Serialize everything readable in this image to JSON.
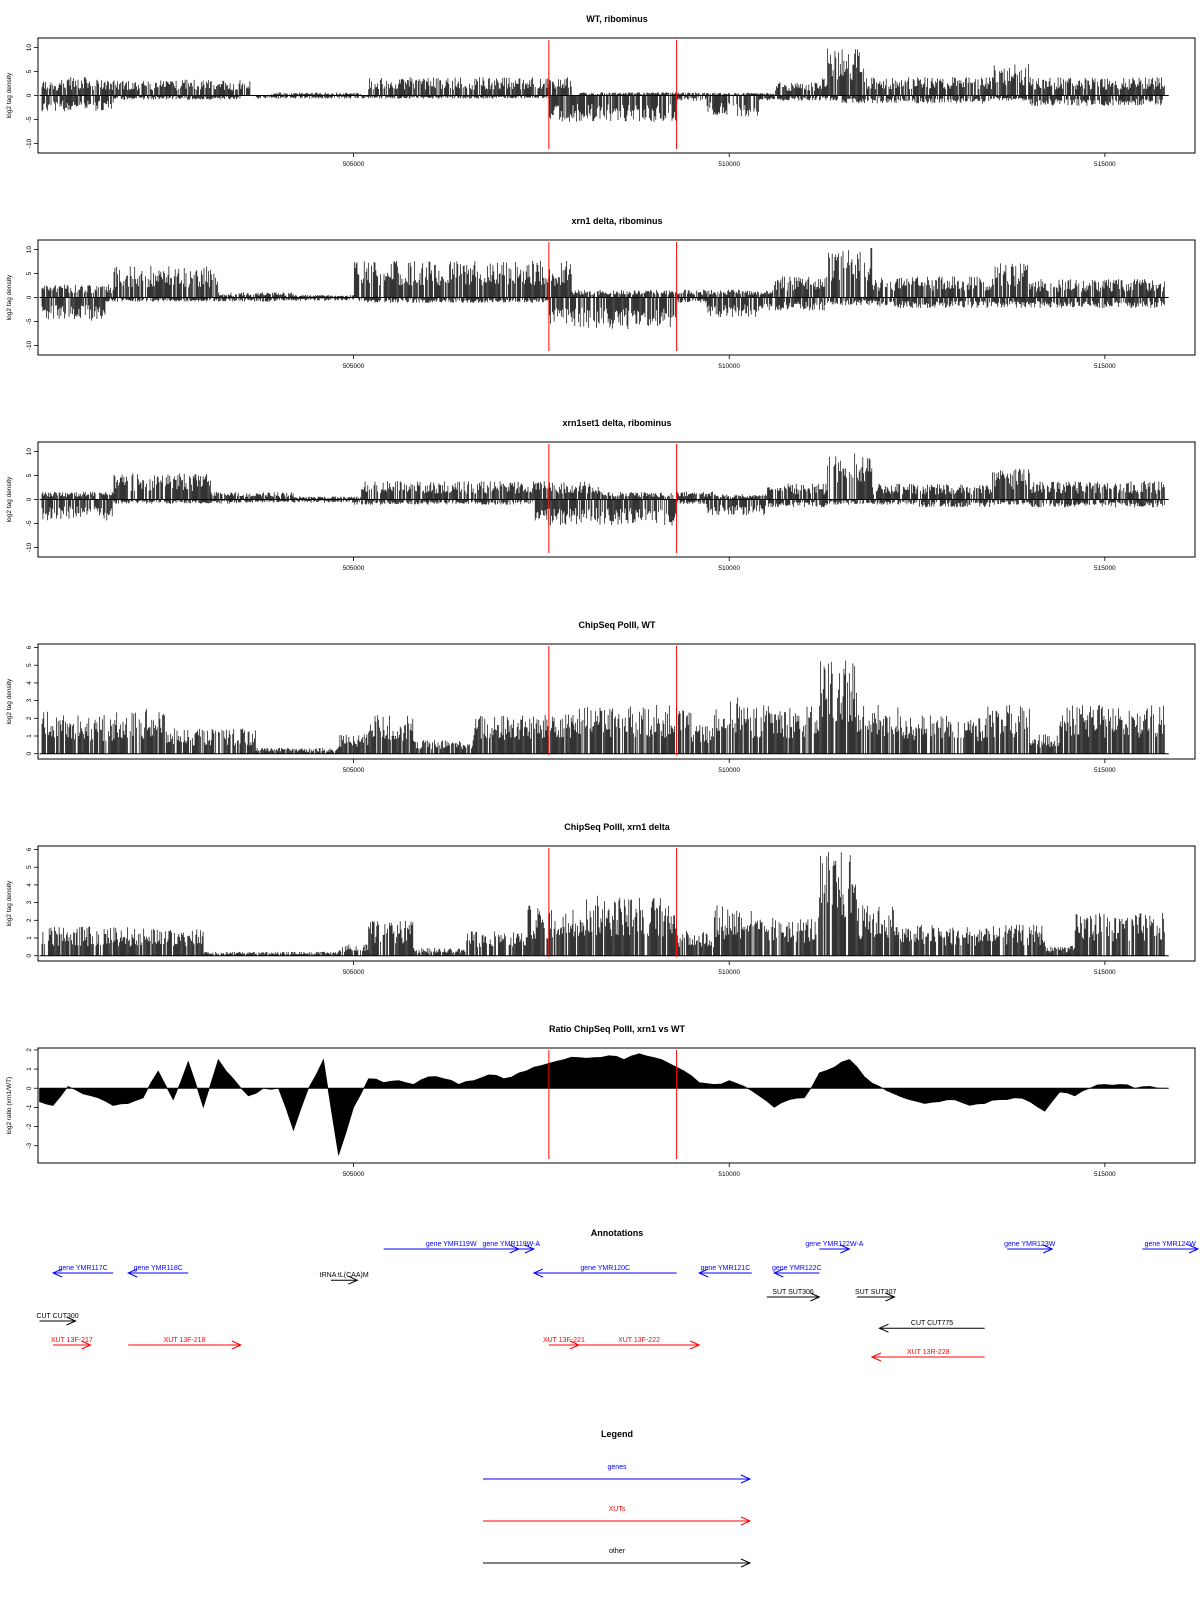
{
  "chart_data": [
    {
      "id": "wt-ribominus",
      "type": "bar",
      "title": "WT, ribominus",
      "ylabel": "log2 tag density",
      "xlim": [
        500800,
        516200
      ],
      "ylim": [
        -12,
        12
      ],
      "yticks": [
        -10,
        -5,
        0,
        5,
        10
      ],
      "xticks": [
        505000,
        510000,
        515000
      ],
      "bidirectional": true,
      "markers": [
        507600,
        509300
      ],
      "plus": [
        [
          500820,
          503630,
          3.0
        ],
        [
          501200,
          501500,
          3.5
        ],
        [
          502100,
          503600,
          3.0
        ],
        [
          503900,
          505100,
          0.6
        ],
        [
          505200,
          507900,
          3.5
        ],
        [
          508000,
          509800,
          0.6
        ],
        [
          509800,
          510600,
          0.5
        ],
        [
          510600,
          511200,
          2.5
        ],
        [
          511200,
          511800,
          3.5
        ],
        [
          511300,
          511800,
          9.0
        ],
        [
          511800,
          513500,
          3.5
        ],
        [
          513500,
          514000,
          6.0
        ],
        [
          514000,
          515800,
          3.5
        ]
      ],
      "minus": [
        [
          500820,
          501800,
          3.0
        ],
        [
          501800,
          503500,
          0.8
        ],
        [
          503700,
          507600,
          0.6
        ],
        [
          507600,
          509300,
          5.0
        ],
        [
          509300,
          509700,
          1.0
        ],
        [
          509700,
          510400,
          4.0
        ],
        [
          510400,
          511500,
          1.0
        ],
        [
          511500,
          512500,
          1.5
        ],
        [
          512500,
          513500,
          1.5
        ],
        [
          513500,
          514000,
          1.0
        ],
        [
          514000,
          515800,
          2.0
        ]
      ]
    },
    {
      "id": "xrn1-ribominus",
      "type": "bar",
      "title": "xrn1 delta, ribominus",
      "ylabel": "log2 tag density",
      "xlim": [
        500800,
        516200
      ],
      "ylim": [
        -12,
        12
      ],
      "yticks": [
        -10,
        -5,
        0,
        5,
        10
      ],
      "xticks": [
        505000,
        510000,
        515000
      ],
      "bidirectional": true,
      "markers": [
        507600,
        509300
      ],
      "plus": [
        [
          500820,
          501800,
          2.5
        ],
        [
          501800,
          503200,
          6.0
        ],
        [
          503200,
          504200,
          1.0
        ],
        [
          504200,
          505000,
          0.5
        ],
        [
          505000,
          507900,
          7.0
        ],
        [
          507900,
          509800,
          1.5
        ],
        [
          509800,
          510600,
          1.5
        ],
        [
          510600,
          511300,
          4.0
        ],
        [
          511300,
          511900,
          9.5
        ],
        [
          511900,
          513500,
          4.0
        ],
        [
          513500,
          514000,
          6.5
        ],
        [
          514000,
          515800,
          3.5
        ]
      ],
      "minus": [
        [
          500820,
          501700,
          4.5
        ],
        [
          501700,
          504000,
          0.8
        ],
        [
          504000,
          505000,
          0.6
        ],
        [
          505000,
          507600,
          1.0
        ],
        [
          507600,
          509300,
          6.0
        ],
        [
          509300,
          509700,
          1.0
        ],
        [
          509700,
          510400,
          4.0
        ],
        [
          510400,
          511300,
          2.5
        ],
        [
          511300,
          512000,
          1.5
        ],
        [
          512000,
          513500,
          2.0
        ],
        [
          513500,
          514200,
          2.0
        ],
        [
          514200,
          515800,
          2.0
        ]
      ]
    },
    {
      "id": "xrn1set1-ribominus",
      "type": "bar",
      "title": "xrn1set1 delta, ribominus",
      "ylabel": "log2 tag density",
      "xlim": [
        500800,
        516200
      ],
      "ylim": [
        -12,
        12
      ],
      "yticks": [
        -10,
        -5,
        0,
        5,
        10
      ],
      "xticks": [
        505000,
        510000,
        515000
      ],
      "bidirectional": true,
      "markers": [
        507600,
        509300
      ],
      "plus": [
        [
          500820,
          501800,
          1.5
        ],
        [
          501800,
          503100,
          5.0
        ],
        [
          503100,
          504200,
          1.5
        ],
        [
          504200,
          505100,
          0.6
        ],
        [
          505100,
          508300,
          3.5
        ],
        [
          508300,
          509800,
          1.5
        ],
        [
          509800,
          510500,
          1.0
        ],
        [
          510500,
          511300,
          3.0
        ],
        [
          511300,
          511900,
          9.0
        ],
        [
          511900,
          513500,
          3.0
        ],
        [
          513500,
          514000,
          6.0
        ],
        [
          514000,
          515800,
          3.5
        ]
      ],
      "minus": [
        [
          500820,
          501800,
          4.0
        ],
        [
          501800,
          503500,
          0.8
        ],
        [
          503500,
          505000,
          0.6
        ],
        [
          505000,
          507400,
          1.0
        ],
        [
          507400,
          509300,
          5.0
        ],
        [
          509300,
          509700,
          1.0
        ],
        [
          509700,
          510500,
          3.0
        ],
        [
          510500,
          511300,
          1.5
        ],
        [
          511300,
          512500,
          1.0
        ],
        [
          512500,
          513500,
          1.5
        ],
        [
          513500,
          514000,
          1.0
        ],
        [
          514000,
          515800,
          1.5
        ]
      ]
    },
    {
      "id": "chipseq-wt",
      "type": "bar",
      "title": "ChipSeq PolII, WT",
      "ylabel": "log2 tag density",
      "xlim": [
        500800,
        516200
      ],
      "ylim": [
        -0.3,
        6.2
      ],
      "yticks": [
        0,
        1,
        2,
        3,
        4,
        5,
        6
      ],
      "xticks": [
        505000,
        510000,
        515000
      ],
      "bidirectional": false,
      "markers": [
        507600,
        509300
      ],
      "plus": [
        [
          500820,
          501000,
          2.3
        ],
        [
          501000,
          501800,
          2.0
        ],
        [
          501800,
          502500,
          2.3
        ],
        [
          502500,
          503700,
          1.3
        ],
        [
          503700,
          504800,
          0.3
        ],
        [
          504800,
          505200,
          1.0
        ],
        [
          505200,
          505800,
          2.0
        ],
        [
          505800,
          506600,
          0.7
        ],
        [
          506600,
          507600,
          2.0
        ],
        [
          507600,
          508200,
          2.4
        ],
        [
          508200,
          509500,
          2.5
        ],
        [
          509500,
          509800,
          1.5
        ],
        [
          509800,
          510200,
          3.0
        ],
        [
          510200,
          511200,
          2.5
        ],
        [
          511200,
          511700,
          5.0
        ],
        [
          511700,
          512300,
          2.5
        ],
        [
          512300,
          513400,
          2.0
        ],
        [
          513400,
          514000,
          2.5
        ],
        [
          514000,
          514400,
          1.0
        ],
        [
          514400,
          515800,
          2.5
        ]
      ]
    },
    {
      "id": "chipseq-xrn1",
      "type": "bar",
      "title": "ChipSeq PolII, xrn1 delta",
      "ylabel": "log2 tag density",
      "xlim": [
        500800,
        516200
      ],
      "ylim": [
        -0.3,
        6.2
      ],
      "yticks": [
        0,
        1,
        2,
        3,
        4,
        5,
        6
      ],
      "xticks": [
        505000,
        510000,
        515000
      ],
      "bidirectional": false,
      "markers": [
        507600,
        509300
      ],
      "plus": [
        [
          500820,
          502000,
          1.5
        ],
        [
          502000,
          503000,
          1.4
        ],
        [
          503000,
          504800,
          0.2
        ],
        [
          504800,
          505200,
          0.6
        ],
        [
          505200,
          505800,
          1.8
        ],
        [
          505800,
          506500,
          0.4
        ],
        [
          506500,
          507300,
          1.3
        ],
        [
          507300,
          507900,
          2.6
        ],
        [
          507900,
          509300,
          3.1
        ],
        [
          509300,
          509800,
          1.3
        ],
        [
          509800,
          510300,
          2.6
        ],
        [
          510300,
          511200,
          2.0
        ],
        [
          511200,
          511700,
          5.4
        ],
        [
          511700,
          512200,
          2.6
        ],
        [
          512200,
          513400,
          1.6
        ],
        [
          513400,
          514200,
          1.6
        ],
        [
          514200,
          514600,
          0.5
        ],
        [
          514600,
          515800,
          2.2
        ]
      ]
    },
    {
      "id": "ratio-chipseq",
      "type": "area",
      "title": "Ratio ChipSeq PolII, xrn1 vs WT",
      "ylabel": "log2 ratio (xrn1/WT)",
      "xlim": [
        500800,
        516200
      ],
      "ylim": [
        -3.9,
        2.1
      ],
      "yticks": [
        -3,
        -2,
        -1,
        0,
        1,
        2
      ],
      "xticks": [
        505000,
        510000,
        515000
      ],
      "markers": [
        507600,
        509300
      ],
      "x": [
        500820,
        501000,
        501200,
        501400,
        501600,
        501800,
        502000,
        502200,
        502400,
        502600,
        502800,
        503000,
        503200,
        503400,
        503600,
        503800,
        504000,
        504200,
        504400,
        504600,
        504800,
        505000,
        505200,
        505400,
        505600,
        505800,
        506000,
        506200,
        506400,
        506600,
        506800,
        507000,
        507200,
        507400,
        507600,
        507800,
        508000,
        508200,
        508400,
        508600,
        508800,
        509000,
        509200,
        509400,
        509600,
        509800,
        510000,
        510200,
        510400,
        510600,
        510800,
        511000,
        511200,
        511400,
        511600,
        511800,
        512000,
        512200,
        512400,
        512600,
        512800,
        513000,
        513200,
        513400,
        513600,
        513800,
        514000,
        514200,
        514400,
        514600,
        514800,
        515000,
        515200,
        515400,
        515600,
        515800
      ],
      "values": [
        -0.7,
        -0.9,
        0.1,
        -0.3,
        -0.5,
        -0.9,
        -0.8,
        -0.5,
        0.9,
        -0.6,
        1.4,
        -1.0,
        1.5,
        0.5,
        -0.4,
        0.0,
        0.0,
        -2.2,
        0.0,
        1.5,
        -3.5,
        -1.0,
        0.5,
        0.3,
        0.4,
        0.2,
        0.6,
        0.5,
        0.2,
        0.4,
        0.7,
        0.5,
        0.8,
        1.1,
        1.3,
        1.5,
        1.6,
        1.6,
        1.7,
        1.5,
        1.8,
        1.6,
        1.3,
        0.9,
        0.3,
        0.2,
        0.4,
        0.1,
        -0.4,
        -1.0,
        -0.6,
        -0.5,
        0.8,
        1.1,
        1.5,
        0.6,
        0.1,
        -0.3,
        -0.6,
        -0.8,
        -0.7,
        -0.6,
        -0.9,
        -0.8,
        -0.6,
        -0.5,
        -0.7,
        -1.2,
        -0.2,
        -0.4,
        0.0,
        0.2,
        0.2,
        0.0,
        0.1,
        0.0
      ]
    }
  ],
  "annotations": {
    "title": "Annotations",
    "items": [
      {
        "label": "gene YMR117C",
        "x1": 501000,
        "x2": 501800,
        "dir": "left",
        "row": 0,
        "kind": "gene"
      },
      {
        "label": "gene YMR118C",
        "x1": 502000,
        "x2": 502800,
        "dir": "left",
        "row": 0,
        "kind": "gene"
      },
      {
        "label": "gene YMR119W",
        "x1": 505400,
        "x2": 507200,
        "dir": "right",
        "row": -1,
        "kind": "gene"
      },
      {
        "label": "gene YMR119W-A",
        "x1": 506800,
        "x2": 507400,
        "dir": "right",
        "row": -1,
        "kind": "gene"
      },
      {
        "label": "gene YMR120C",
        "x1": 507400,
        "x2": 509300,
        "dir": "left",
        "row": 0,
        "kind": "gene"
      },
      {
        "label": "gene YMR121C",
        "x1": 509600,
        "x2": 510300,
        "dir": "left",
        "row": 0,
        "kind": "gene"
      },
      {
        "label": "gene YMR122C",
        "x1": 510600,
        "x2": 511200,
        "dir": "left",
        "row": 0,
        "kind": "gene"
      },
      {
        "label": "gene YMR122W-A",
        "x1": 511200,
        "x2": 511600,
        "dir": "right",
        "row": -1,
        "kind": "gene"
      },
      {
        "label": "gene YMR123W",
        "x1": 513700,
        "x2": 514300,
        "dir": "right",
        "row": -1,
        "kind": "gene"
      },
      {
        "label": "gene YMR124W",
        "x1": 515500,
        "x2": 516400,
        "dir": "right",
        "row": -1,
        "kind": "gene"
      },
      {
        "label": "tRNA tL(CAA)M",
        "x1": 504700,
        "x2": 505050,
        "dir": "right",
        "row": 0.3,
        "kind": "other"
      },
      {
        "label": "SUT SUT306",
        "x1": 510500,
        "x2": 511200,
        "dir": "right",
        "row": 1,
        "kind": "other"
      },
      {
        "label": "SUT SUT307",
        "x1": 511700,
        "x2": 512200,
        "dir": "right",
        "row": 1,
        "kind": "other"
      },
      {
        "label": "CUT CUT300",
        "x1": 500820,
        "x2": 501300,
        "dir": "right",
        "row": 2,
        "kind": "other"
      },
      {
        "label": "CUT CUT775",
        "x1": 512000,
        "x2": 513400,
        "dir": "left",
        "row": 2.3,
        "kind": "other"
      },
      {
        "label": "XUT 13F-217",
        "x1": 501000,
        "x2": 501500,
        "dir": "right",
        "row": 3,
        "kind": "xut"
      },
      {
        "label": "XUT 13F-218",
        "x1": 502000,
        "x2": 503500,
        "dir": "right",
        "row": 3,
        "kind": "xut"
      },
      {
        "label": "XUT 13F-221",
        "x1": 507600,
        "x2": 508000,
        "dir": "right",
        "row": 3,
        "kind": "xut"
      },
      {
        "label": "XUT 13F-222",
        "x1": 508000,
        "x2": 509600,
        "dir": "right",
        "row": 3,
        "kind": "xut"
      },
      {
        "label": "XUT 13R-228",
        "x1": 511900,
        "x2": 513400,
        "dir": "left",
        "row": 3.5,
        "kind": "xut"
      }
    ]
  },
  "legend": {
    "title": "Legend",
    "items": [
      {
        "label": "genes",
        "kind": "gene"
      },
      {
        "label": "XUTs",
        "kind": "xut"
      },
      {
        "label": "other",
        "kind": "other"
      }
    ]
  },
  "colors": {
    "gene": "#0000ff",
    "xut": "#ff0000",
    "other": "#000000",
    "marker": "#ff0000",
    "data": "#000000"
  }
}
